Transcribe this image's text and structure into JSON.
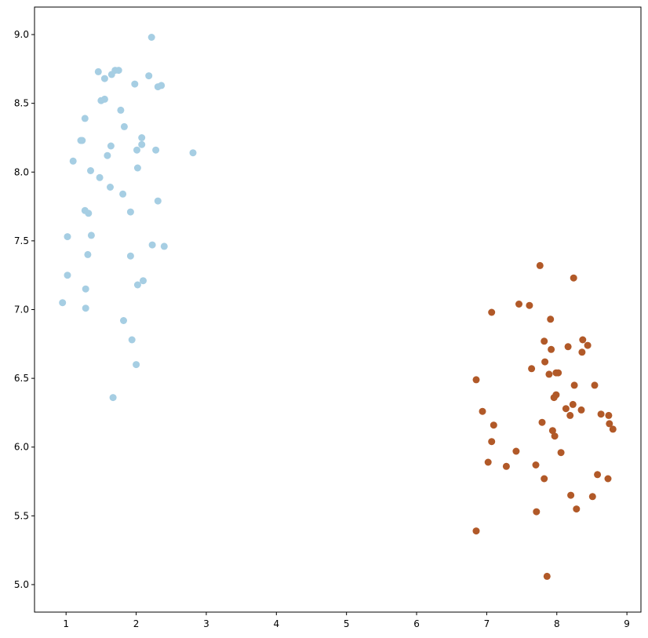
{
  "chart_data": {
    "type": "scatter",
    "title": "",
    "xlabel": "",
    "ylabel": "",
    "xlim": [
      0.55,
      9.2
    ],
    "ylim": [
      4.8,
      9.2
    ],
    "grid": false,
    "xticks": [
      1,
      2,
      3,
      4,
      5,
      6,
      7,
      8,
      9
    ],
    "xtick_labels": [
      "1",
      "2",
      "3",
      "4",
      "5",
      "6",
      "7",
      "8",
      "9"
    ],
    "yticks": [
      5.0,
      5.5,
      6.0,
      6.5,
      7.0,
      7.5,
      8.0,
      8.5,
      9.0
    ],
    "ytick_labels": [
      "5.0",
      "5.5",
      "6.0",
      "6.5",
      "7.0",
      "7.5",
      "8.0",
      "8.5",
      "9.0"
    ],
    "series": [
      {
        "color": "#a6cee3",
        "points": [
          [
            2.22,
            8.98
          ],
          [
            1.46,
            8.73
          ],
          [
            1.7,
            8.74
          ],
          [
            1.75,
            8.74
          ],
          [
            1.65,
            8.71
          ],
          [
            2.18,
            8.7
          ],
          [
            1.55,
            8.68
          ],
          [
            1.98,
            8.64
          ],
          [
            2.36,
            8.63
          ],
          [
            2.31,
            8.62
          ],
          [
            1.5,
            8.52
          ],
          [
            1.55,
            8.53
          ],
          [
            1.78,
            8.45
          ],
          [
            1.27,
            8.39
          ],
          [
            1.83,
            8.33
          ],
          [
            2.08,
            8.25
          ],
          [
            1.21,
            8.23
          ],
          [
            1.23,
            8.23
          ],
          [
            2.08,
            8.2
          ],
          [
            1.64,
            8.19
          ],
          [
            2.01,
            8.16
          ],
          [
            2.28,
            8.16
          ],
          [
            2.81,
            8.14
          ],
          [
            1.59,
            8.12
          ],
          [
            1.1,
            8.08
          ],
          [
            2.02,
            8.03
          ],
          [
            1.35,
            8.01
          ],
          [
            1.48,
            7.96
          ],
          [
            1.63,
            7.89
          ],
          [
            1.81,
            7.84
          ],
          [
            2.31,
            7.79
          ],
          [
            1.27,
            7.72
          ],
          [
            1.32,
            7.7
          ],
          [
            1.92,
            7.71
          ],
          [
            1.02,
            7.53
          ],
          [
            1.36,
            7.54
          ],
          [
            2.23,
            7.47
          ],
          [
            2.4,
            7.46
          ],
          [
            1.31,
            7.4
          ],
          [
            1.92,
            7.39
          ],
          [
            1.02,
            7.25
          ],
          [
            2.1,
            7.21
          ],
          [
            2.02,
            7.18
          ],
          [
            1.28,
            7.15
          ],
          [
            0.95,
            7.05
          ],
          [
            1.28,
            7.01
          ],
          [
            1.82,
            6.92
          ],
          [
            1.94,
            6.78
          ],
          [
            2.0,
            6.6
          ],
          [
            1.67,
            6.36
          ]
        ]
      },
      {
        "color": "#b15928",
        "points": [
          [
            7.76,
            7.32
          ],
          [
            8.24,
            7.23
          ],
          [
            7.46,
            7.04
          ],
          [
            7.61,
            7.03
          ],
          [
            7.07,
            6.98
          ],
          [
            7.91,
            6.93
          ],
          [
            8.37,
            6.78
          ],
          [
            7.82,
            6.77
          ],
          [
            8.44,
            6.74
          ],
          [
            8.16,
            6.73
          ],
          [
            7.92,
            6.71
          ],
          [
            8.36,
            6.69
          ],
          [
            7.64,
            6.57
          ],
          [
            7.99,
            6.54
          ],
          [
            8.02,
            6.54
          ],
          [
            7.89,
            6.53
          ],
          [
            6.85,
            6.49
          ],
          [
            8.25,
            6.45
          ],
          [
            8.54,
            6.45
          ],
          [
            7.83,
            6.62
          ],
          [
            7.99,
            6.38
          ],
          [
            7.96,
            6.36
          ],
          [
            8.23,
            6.31
          ],
          [
            8.13,
            6.28
          ],
          [
            6.94,
            6.26
          ],
          [
            8.35,
            6.27
          ],
          [
            8.63,
            6.24
          ],
          [
            8.74,
            6.23
          ],
          [
            8.19,
            6.23
          ],
          [
            7.79,
            6.18
          ],
          [
            8.75,
            6.17
          ],
          [
            7.1,
            6.16
          ],
          [
            8.8,
            6.13
          ],
          [
            7.94,
            6.12
          ],
          [
            7.97,
            6.08
          ],
          [
            7.07,
            6.04
          ],
          [
            7.42,
            5.97
          ],
          [
            8.06,
            5.96
          ],
          [
            7.02,
            5.89
          ],
          [
            7.7,
            5.87
          ],
          [
            7.28,
            5.86
          ],
          [
            8.58,
            5.8
          ],
          [
            7.82,
            5.77
          ],
          [
            8.73,
            5.77
          ],
          [
            8.2,
            5.65
          ],
          [
            8.51,
            5.64
          ],
          [
            8.28,
            5.55
          ],
          [
            7.71,
            5.53
          ],
          [
            6.85,
            5.39
          ],
          [
            7.86,
            5.06
          ]
        ]
      }
    ]
  }
}
